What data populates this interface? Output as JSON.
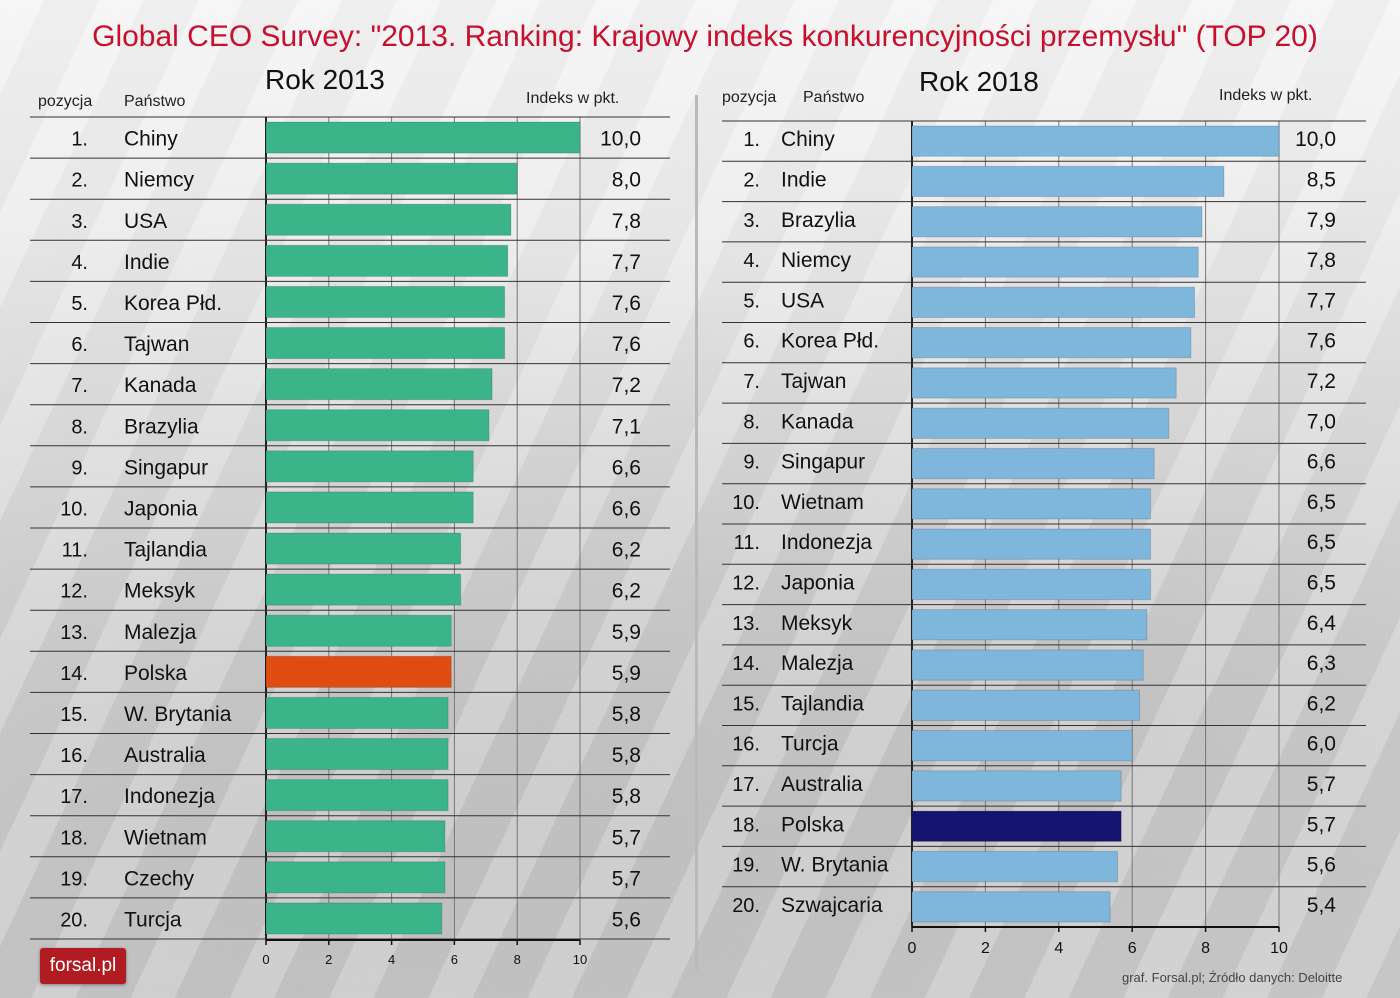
{
  "title": "Global CEO Survey: \"2013. Ranking: Krajowy indeks konkurencyjności przemysłu\" (TOP 20)",
  "logo_text": "forsal.pl",
  "source": "graf. Forsal.pl; Źródło danych: Deloitte",
  "headers": {
    "position": "pozycja",
    "country": "Państwo",
    "index": "Indeks w pkt."
  },
  "colors": {
    "title": "#c8102e",
    "green": "#3cb48a",
    "polska_2013": "#e04d12",
    "blue": "#7fb6dc",
    "polska_2018": "#141470"
  },
  "chart_data": [
    {
      "type": "bar",
      "orientation": "horizontal",
      "title": "Rok 2013",
      "xlim": [
        0,
        10
      ],
      "xticks": [
        "0",
        "2",
        "4",
        "6",
        "8",
        "10"
      ],
      "highlight": "Polska",
      "positions": [
        "1.",
        "2.",
        "3.",
        "4.",
        "5.",
        "6.",
        "7.",
        "8.",
        "9.",
        "10.",
        "11.",
        "12.",
        "13.",
        "14.",
        "15.",
        "16.",
        "17.",
        "18.",
        "19.",
        "20."
      ],
      "categories": [
        "Chiny",
        "Niemcy",
        "USA",
        "Indie",
        "Korea Płd.",
        "Tajwan",
        "Kanada",
        "Brazylia",
        "Singapur",
        "Japonia",
        "Tajlandia",
        "Meksyk",
        "Malezja",
        "Polska",
        "W. Brytania",
        "Australia",
        "Indonezja",
        "Wietnam",
        "Czechy",
        "Turcja"
      ],
      "values": [
        10.0,
        8.0,
        7.8,
        7.7,
        7.6,
        7.6,
        7.2,
        7.1,
        6.6,
        6.6,
        6.2,
        6.2,
        5.9,
        5.9,
        5.8,
        5.8,
        5.8,
        5.7,
        5.7,
        5.6
      ],
      "value_labels": [
        "10,0",
        "8,0",
        "7,8",
        "7,7",
        "7,6",
        "7,6",
        "7,2",
        "7,1",
        "6,6",
        "6,6",
        "6,2",
        "6,2",
        "5,9",
        "5,9",
        "5,8",
        "5,8",
        "5,8",
        "5,7",
        "5,7",
        "5,6"
      ]
    },
    {
      "type": "bar",
      "orientation": "horizontal",
      "title": "Rok 2018",
      "xlim": [
        0,
        10
      ],
      "xticks": [
        "0",
        "2",
        "4",
        "6",
        "8",
        "10"
      ],
      "highlight": "Polska",
      "positions": [
        "1.",
        "2.",
        "3.",
        "4.",
        "5.",
        "6.",
        "7.",
        "8.",
        "9.",
        "10.",
        "11.",
        "12.",
        "13.",
        "14.",
        "15.",
        "16.",
        "17.",
        "18.",
        "19.",
        "20."
      ],
      "categories": [
        "Chiny",
        "Indie",
        "Brazylia",
        "Niemcy",
        "USA",
        "Korea Płd.",
        "Tajwan",
        "Kanada",
        "Singapur",
        "Wietnam",
        "Indonezja",
        "Japonia",
        "Meksyk",
        "Malezja",
        "Tajlandia",
        "Turcja",
        "Australia",
        "Polska",
        "W. Brytania",
        "Szwajcaria"
      ],
      "values": [
        10.0,
        8.5,
        7.9,
        7.8,
        7.7,
        7.6,
        7.2,
        7.0,
        6.6,
        6.5,
        6.5,
        6.5,
        6.4,
        6.3,
        6.2,
        6.0,
        5.7,
        5.7,
        5.6,
        5.4
      ],
      "value_labels": [
        "10,0",
        "8,5",
        "7,9",
        "7,8",
        "7,7",
        "7,6",
        "7,2",
        "7,0",
        "6,6",
        "6,5",
        "6,5",
        "6,5",
        "6,4",
        "6,3",
        "6,2",
        "6,0",
        "5,7",
        "5,7",
        "5,6",
        "5,4"
      ]
    }
  ]
}
